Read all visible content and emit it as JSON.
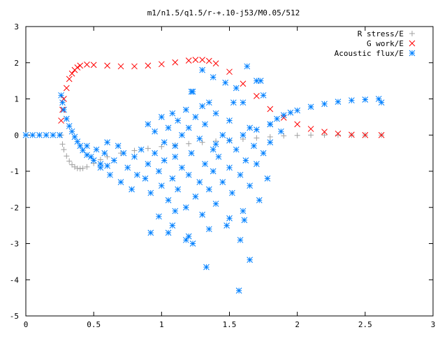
{
  "chart_data": {
    "type": "scatter",
    "title": "m1/n1.5/q1.5/r-+.10-j53/M0.05/512",
    "xlabel": "",
    "ylabel": "",
    "xlim": [
      0,
      3
    ],
    "ylim": [
      -5,
      3
    ],
    "xticks": [
      "0",
      "0.5",
      "1",
      "1.5",
      "2",
      "2.5",
      "3"
    ],
    "yticks": [
      "3",
      "2",
      "1",
      "0",
      "-1",
      "-2",
      "-3",
      "-4",
      "-5"
    ],
    "grid": false,
    "legend_position": "top-right",
    "series": [
      {
        "name": "R stress/E",
        "marker": "plus",
        "color": "#a0a0a0",
        "x": [
          0,
          0.26,
          0.27,
          0.28,
          0.3,
          0.32,
          0.34,
          0.36,
          0.38,
          0.4,
          0.42,
          0.45,
          0.5,
          0.55,
          0.6,
          0.7,
          0.8,
          0.9,
          1.0,
          1.1,
          1.2,
          1.3,
          1.4,
          1.5,
          1.6,
          1.7,
          1.8,
          1.9,
          2.0,
          2.1,
          2.2,
          2.3,
          2.4,
          2.5,
          2.62
        ],
        "y": [
          0,
          0,
          -0.25,
          -0.4,
          -0.58,
          -0.72,
          -0.82,
          -0.88,
          -0.92,
          -0.93,
          -0.92,
          -0.88,
          -0.78,
          -0.68,
          -0.6,
          -0.5,
          -0.43,
          -0.37,
          -0.32,
          -0.28,
          -0.24,
          -0.2,
          -0.17,
          -0.14,
          -0.11,
          -0.08,
          -0.05,
          -0.02,
          -0.01,
          0,
          0,
          0,
          0,
          0,
          0
        ]
      },
      {
        "name": "G work/E",
        "marker": "x",
        "color": "#ff0000",
        "x": [
          0.26,
          0.27,
          0.28,
          0.3,
          0.32,
          0.34,
          0.36,
          0.38,
          0.4,
          0.45,
          0.5,
          0.6,
          0.7,
          0.8,
          0.9,
          1.0,
          1.1,
          1.2,
          1.25,
          1.3,
          1.35,
          1.4,
          1.5,
          1.6,
          1.7,
          1.8,
          1.9,
          2.0,
          2.1,
          2.2,
          2.3,
          2.4,
          2.5,
          2.62
        ],
        "y": [
          0.4,
          0.7,
          1.0,
          1.3,
          1.55,
          1.7,
          1.8,
          1.87,
          1.92,
          1.95,
          1.94,
          1.92,
          1.9,
          1.9,
          1.92,
          1.96,
          2.01,
          2.06,
          2.08,
          2.08,
          2.05,
          1.98,
          1.75,
          1.42,
          1.08,
          0.72,
          0.48,
          0.3,
          0.17,
          0.09,
          0.04,
          0.01,
          0.0,
          0.0
        ]
      },
      {
        "name": "Acoustic flux/E",
        "marker": "star",
        "color": "#0080ff",
        "x": [
          0,
          0.05,
          0.1,
          0.15,
          0.2,
          0.25,
          0.26,
          0.27,
          0.28,
          0.3,
          0.32,
          0.34,
          0.36,
          0.38,
          0.4,
          0.42,
          0.45,
          0.5,
          0.55,
          0.6,
          1.4,
          1.5,
          1.6,
          1.7,
          1.8,
          1.85,
          1.9,
          1.95,
          2.0,
          2.1,
          2.2,
          2.3,
          2.4,
          2.5,
          2.6,
          2.62,
          0.45,
          0.48,
          0.52,
          0.55,
          0.58,
          0.6,
          0.62,
          0.65,
          0.68,
          0.7,
          0.72,
          0.75,
          0.78,
          0.8,
          0.82,
          0.85,
          0.88,
          0.9,
          0.92,
          0.95,
          0.98,
          1.0,
          1.02,
          1.05,
          1.08,
          1.1,
          1.12,
          1.15,
          1.18,
          1.2,
          1.22,
          1.25,
          1.28,
          1.3,
          1.32,
          1.35,
          1.38,
          1.4,
          1.42,
          1.45,
          1.48,
          1.5,
          1.52,
          1.55,
          1.58,
          1.6,
          1.62,
          1.65,
          1.68,
          1.7,
          1.72,
          1.75,
          1.78,
          1.8,
          0.9,
          0.95,
          1.0,
          1.02,
          1.05,
          1.08,
          1.1,
          1.12,
          1.15,
          1.18,
          1.2,
          1.22,
          1.25,
          1.28,
          1.3,
          1.32,
          1.35,
          1.38,
          1.4,
          1.45,
          1.5,
          1.55,
          1.6,
          1.65,
          1.7,
          1.75,
          1.8,
          0.92,
          1.05,
          1.1,
          1.2,
          1.23,
          1.33,
          1.35,
          1.5,
          1.57,
          1.61,
          1.65,
          1.58,
          1.63,
          1.73,
          1.88,
          1.23,
          1.3,
          1.38,
          1.47,
          1.53,
          0.98,
          1.08,
          1.18
        ],
        "y": [
          0,
          0,
          0,
          0,
          0,
          0,
          1.1,
          0.9,
          0.7,
          0.45,
          0.25,
          0.1,
          -0.05,
          -0.18,
          -0.3,
          -0.42,
          -0.55,
          -0.7,
          -0.8,
          -0.85,
          -0.25,
          -0.15,
          0.0,
          0.15,
          0.3,
          0.45,
          0.55,
          0.62,
          0.68,
          0.78,
          0.86,
          0.92,
          0.96,
          0.98,
          1.0,
          0.9,
          -0.3,
          -0.6,
          -0.4,
          -0.9,
          -0.5,
          -0.2,
          -1.1,
          -0.7,
          -0.3,
          -1.3,
          -0.5,
          -0.9,
          -1.5,
          -0.6,
          -1.1,
          -0.4,
          -1.2,
          -0.8,
          -1.6,
          -0.5,
          -1.0,
          -1.4,
          -0.7,
          -1.8,
          -1.2,
          -0.6,
          -1.5,
          -0.9,
          -2.0,
          -1.1,
          -0.5,
          -1.7,
          -1.3,
          -2.2,
          -0.8,
          -1.5,
          -1.0,
          -1.9,
          -0.6,
          -1.3,
          -2.5,
          -0.9,
          -1.6,
          -0.4,
          -1.1,
          -2.1,
          -0.7,
          -1.4,
          -0.3,
          -0.8,
          -1.8,
          -0.5,
          -1.2,
          -0.2,
          0.3,
          0.1,
          0.5,
          -0.2,
          0.2,
          0.6,
          -0.3,
          0.4,
          0.0,
          0.7,
          0.2,
          1.2,
          0.5,
          -0.1,
          0.8,
          0.3,
          0.9,
          -0.4,
          0.6,
          0.0,
          0.4,
          1.3,
          0.9,
          0.2,
          1.5,
          1.1,
          0.3,
          -2.7,
          -2.7,
          -2.1,
          -2.8,
          -3.0,
          -3.65,
          -2.6,
          -2.3,
          -4.3,
          -2.35,
          -3.45,
          -2.9,
          1.9,
          1.5,
          0.1,
          1.2,
          1.8,
          1.6,
          1.45,
          0.9,
          -2.25,
          -2.5,
          -2.9
        ]
      }
    ]
  }
}
